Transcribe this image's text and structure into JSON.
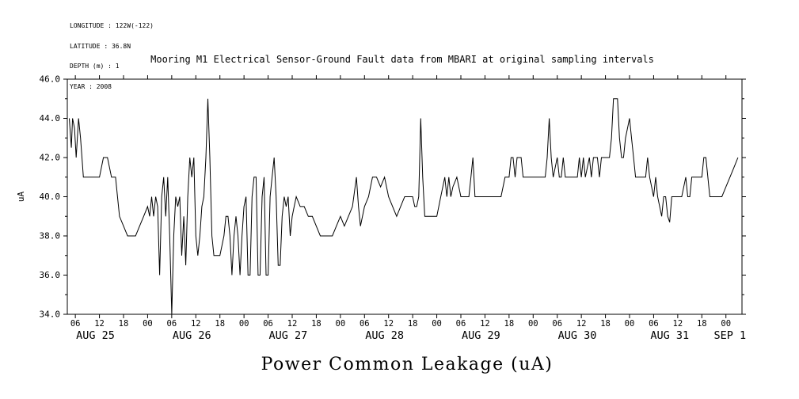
{
  "meta": {
    "longitude": "LONGITUDE : 122W(-122)",
    "latitude": "LATITUDE : 36.8N",
    "depth": "DEPTH (m) : 1",
    "year": "YEAR : 2008"
  },
  "title": "Mooring M1 Electrical Sensor-Ground Fault data from MBARI at original sampling intervals",
  "xlabel": "Power Common Leakage (uA)",
  "ylabel": "uA",
  "colors": {
    "line": "#000000",
    "frame": "#000000",
    "background": "#ffffff"
  },
  "chart_data": {
    "type": "line",
    "title": "Mooring M1 Electrical Sensor-Ground Fault data from MBARI at original sampling intervals",
    "xlabel": "Power Common Leakage (uA)",
    "ylabel": "uA",
    "grid": false,
    "legend": "none",
    "x_unit": "hours since AUG 25 2008 00:00",
    "x_domain": [
      4,
      172
    ],
    "ylim": [
      34,
      46
    ],
    "y_ticks": [
      34,
      36,
      38,
      40,
      42,
      44,
      46
    ],
    "y_tick_labels": [
      "34.0",
      "36.0",
      "38.0",
      "40.0",
      "42.0",
      "44.0",
      "46.0"
    ],
    "y_minor_ticks": [
      35,
      37,
      39,
      41,
      43,
      45
    ],
    "x_tick_hours": [
      6,
      12,
      18,
      24,
      30,
      36,
      42,
      48,
      54,
      60,
      66,
      72,
      78,
      84,
      90,
      96,
      102,
      108,
      114,
      120,
      126,
      132,
      138,
      144,
      150,
      156,
      162,
      168
    ],
    "x_tick_labels": [
      "06",
      "12",
      "18",
      "00",
      "06",
      "12",
      "18",
      "00",
      "06",
      "12",
      "18",
      "00",
      "06",
      "12",
      "18",
      "00",
      "06",
      "12",
      "18",
      "00",
      "06",
      "12",
      "18",
      "00",
      "06",
      "12",
      "18",
      "00"
    ],
    "day_labels": [
      {
        "label": "AUG 25",
        "hour": 11
      },
      {
        "label": "AUG 26",
        "hour": 35
      },
      {
        "label": "AUG 27",
        "hour": 59
      },
      {
        "label": "AUG 28",
        "hour": 83
      },
      {
        "label": "AUG 29",
        "hour": 107
      },
      {
        "label": "AUG 30",
        "hour": 131
      },
      {
        "label": "AUG 31",
        "hour": 154
      },
      {
        "label": "SEP 1",
        "hour": 169
      }
    ],
    "series": [
      {
        "name": "power_common_leakage_uA",
        "points": [
          [
            4.5,
            44
          ],
          [
            5,
            42.5
          ],
          [
            5.3,
            44
          ],
          [
            5.8,
            43.5
          ],
          [
            6.2,
            42
          ],
          [
            6.8,
            44
          ],
          [
            7.3,
            43
          ],
          [
            8,
            41
          ],
          [
            9,
            41
          ],
          [
            10,
            41
          ],
          [
            11,
            41
          ],
          [
            12,
            41
          ],
          [
            12.5,
            41.5
          ],
          [
            13,
            42
          ],
          [
            14,
            42
          ],
          [
            15,
            41
          ],
          [
            16,
            41
          ],
          [
            17,
            39
          ],
          [
            18,
            38.5
          ],
          [
            19,
            38
          ],
          [
            20,
            38
          ],
          [
            21,
            38
          ],
          [
            22,
            38.5
          ],
          [
            23,
            39
          ],
          [
            24,
            39.5
          ],
          [
            24.5,
            39
          ],
          [
            25,
            40
          ],
          [
            25.5,
            39
          ],
          [
            26,
            40
          ],
          [
            26.5,
            39.5
          ],
          [
            27,
            36
          ],
          [
            27.5,
            40
          ],
          [
            28,
            41
          ],
          [
            28.5,
            39
          ],
          [
            29,
            41
          ],
          [
            29.5,
            38
          ],
          [
            30,
            34
          ],
          [
            30.5,
            38
          ],
          [
            31,
            40
          ],
          [
            31.5,
            39.5
          ],
          [
            32,
            40
          ],
          [
            32.5,
            37
          ],
          [
            33,
            39
          ],
          [
            33.5,
            36.5
          ],
          [
            34,
            40
          ],
          [
            34.5,
            42
          ],
          [
            35,
            41
          ],
          [
            35.5,
            42
          ],
          [
            36,
            38
          ],
          [
            36.5,
            37
          ],
          [
            37,
            38
          ],
          [
            37.5,
            39.5
          ],
          [
            38,
            40
          ],
          [
            38.5,
            42
          ],
          [
            39,
            45
          ],
          [
            39.5,
            42
          ],
          [
            40,
            38
          ],
          [
            40.5,
            37
          ],
          [
            41,
            37
          ],
          [
            42,
            37
          ],
          [
            43,
            38
          ],
          [
            43.5,
            39
          ],
          [
            44,
            39
          ],
          [
            44.5,
            38
          ],
          [
            45,
            36
          ],
          [
            45.5,
            38
          ],
          [
            46,
            39
          ],
          [
            46.5,
            38
          ],
          [
            47,
            36
          ],
          [
            47.5,
            38
          ],
          [
            48,
            39.5
          ],
          [
            48.5,
            40
          ],
          [
            49,
            36
          ],
          [
            49.5,
            36
          ],
          [
            50,
            40
          ],
          [
            50.5,
            41
          ],
          [
            51,
            41
          ],
          [
            51.5,
            36
          ],
          [
            52,
            36
          ],
          [
            52.5,
            40
          ],
          [
            53,
            41
          ],
          [
            53.5,
            36
          ],
          [
            54,
            36
          ],
          [
            54.5,
            40
          ],
          [
            55,
            41
          ],
          [
            55.5,
            42
          ],
          [
            56,
            40
          ],
          [
            56.5,
            36.5
          ],
          [
            57,
            36.5
          ],
          [
            57.5,
            39
          ],
          [
            58,
            40
          ],
          [
            58.5,
            39.5
          ],
          [
            59,
            40
          ],
          [
            59.5,
            38
          ],
          [
            60,
            39
          ],
          [
            60.5,
            39.5
          ],
          [
            61,
            40
          ],
          [
            62,
            39.5
          ],
          [
            63,
            39.5
          ],
          [
            64,
            39
          ],
          [
            65,
            39
          ],
          [
            66,
            38.5
          ],
          [
            67,
            38
          ],
          [
            68,
            38
          ],
          [
            69,
            38
          ],
          [
            70,
            38
          ],
          [
            71,
            38.5
          ],
          [
            72,
            39
          ],
          [
            73,
            38.5
          ],
          [
            74,
            39
          ],
          [
            75,
            39.5
          ],
          [
            76,
            41
          ],
          [
            76.5,
            39.5
          ],
          [
            77,
            38.5
          ],
          [
            78,
            39.5
          ],
          [
            79,
            40
          ],
          [
            80,
            41
          ],
          [
            81,
            41
          ],
          [
            82,
            40.5
          ],
          [
            83,
            41
          ],
          [
            84,
            40
          ],
          [
            85,
            39.5
          ],
          [
            86,
            39
          ],
          [
            87,
            39.5
          ],
          [
            88,
            40
          ],
          [
            89,
            40
          ],
          [
            90,
            40
          ],
          [
            90.5,
            39.5
          ],
          [
            91,
            39.5
          ],
          [
            91.5,
            40
          ],
          [
            92,
            44
          ],
          [
            92.5,
            41
          ],
          [
            93,
            39
          ],
          [
            94,
            39
          ],
          [
            95,
            39
          ],
          [
            96,
            39
          ],
          [
            97,
            40
          ],
          [
            98,
            41
          ],
          [
            98.5,
            40
          ],
          [
            99,
            41
          ],
          [
            99.5,
            40
          ],
          [
            100,
            40.5
          ],
          [
            101,
            41
          ],
          [
            102,
            40
          ],
          [
            103,
            40
          ],
          [
            104,
            40
          ],
          [
            104.5,
            41
          ],
          [
            105,
            42
          ],
          [
            105.5,
            40
          ],
          [
            106,
            40
          ],
          [
            107,
            40
          ],
          [
            108,
            40
          ],
          [
            109,
            40
          ],
          [
            110,
            40
          ],
          [
            111,
            40
          ],
          [
            112,
            40
          ],
          [
            113,
            41
          ],
          [
            114,
            41
          ],
          [
            114.5,
            42
          ],
          [
            115,
            42
          ],
          [
            115.5,
            41
          ],
          [
            116,
            42
          ],
          [
            117,
            42
          ],
          [
            117.5,
            41
          ],
          [
            118,
            41
          ],
          [
            119,
            41
          ],
          [
            120,
            41
          ],
          [
            121,
            41
          ],
          [
            122,
            41
          ],
          [
            123,
            41
          ],
          [
            123.5,
            42
          ],
          [
            124,
            44
          ],
          [
            124.5,
            42
          ],
          [
            125,
            41
          ],
          [
            126,
            42
          ],
          [
            126.5,
            41
          ],
          [
            127,
            41
          ],
          [
            127.5,
            42
          ],
          [
            128,
            41
          ],
          [
            129,
            41
          ],
          [
            130,
            41
          ],
          [
            131,
            41
          ],
          [
            131.5,
            42
          ],
          [
            132,
            41
          ],
          [
            132.5,
            42
          ],
          [
            133,
            41
          ],
          [
            134,
            42
          ],
          [
            134.5,
            41
          ],
          [
            135,
            42
          ],
          [
            136,
            42
          ],
          [
            136.5,
            41
          ],
          [
            137,
            42
          ],
          [
            138,
            42
          ],
          [
            139,
            42
          ],
          [
            139.5,
            43
          ],
          [
            140,
            45
          ],
          [
            141,
            45
          ],
          [
            141.5,
            43
          ],
          [
            142,
            42
          ],
          [
            142.5,
            42
          ],
          [
            143,
            43
          ],
          [
            144,
            44
          ],
          [
            144.5,
            43
          ],
          [
            145,
            42
          ],
          [
            145.5,
            41
          ],
          [
            146,
            41
          ],
          [
            147,
            41
          ],
          [
            148,
            41
          ],
          [
            148.5,
            42
          ],
          [
            149,
            41
          ],
          [
            150,
            40
          ],
          [
            150.5,
            41
          ],
          [
            151,
            40
          ],
          [
            152,
            39
          ],
          [
            152.5,
            40
          ],
          [
            153,
            40
          ],
          [
            153.5,
            39
          ],
          [
            154,
            38.7
          ],
          [
            154.5,
            40
          ],
          [
            155,
            40
          ],
          [
            156,
            40
          ],
          [
            157,
            40
          ],
          [
            158,
            41
          ],
          [
            158.5,
            40
          ],
          [
            159,
            40
          ],
          [
            159.5,
            41
          ],
          [
            160,
            41
          ],
          [
            161,
            41
          ],
          [
            162,
            41
          ],
          [
            162.5,
            42
          ],
          [
            163,
            42
          ],
          [
            163.5,
            41
          ],
          [
            164,
            40
          ],
          [
            165,
            40
          ],
          [
            166,
            40
          ],
          [
            167,
            40
          ],
          [
            168,
            40.5
          ],
          [
            169,
            41
          ],
          [
            170,
            41.5
          ],
          [
            171,
            42
          ]
        ]
      }
    ]
  }
}
